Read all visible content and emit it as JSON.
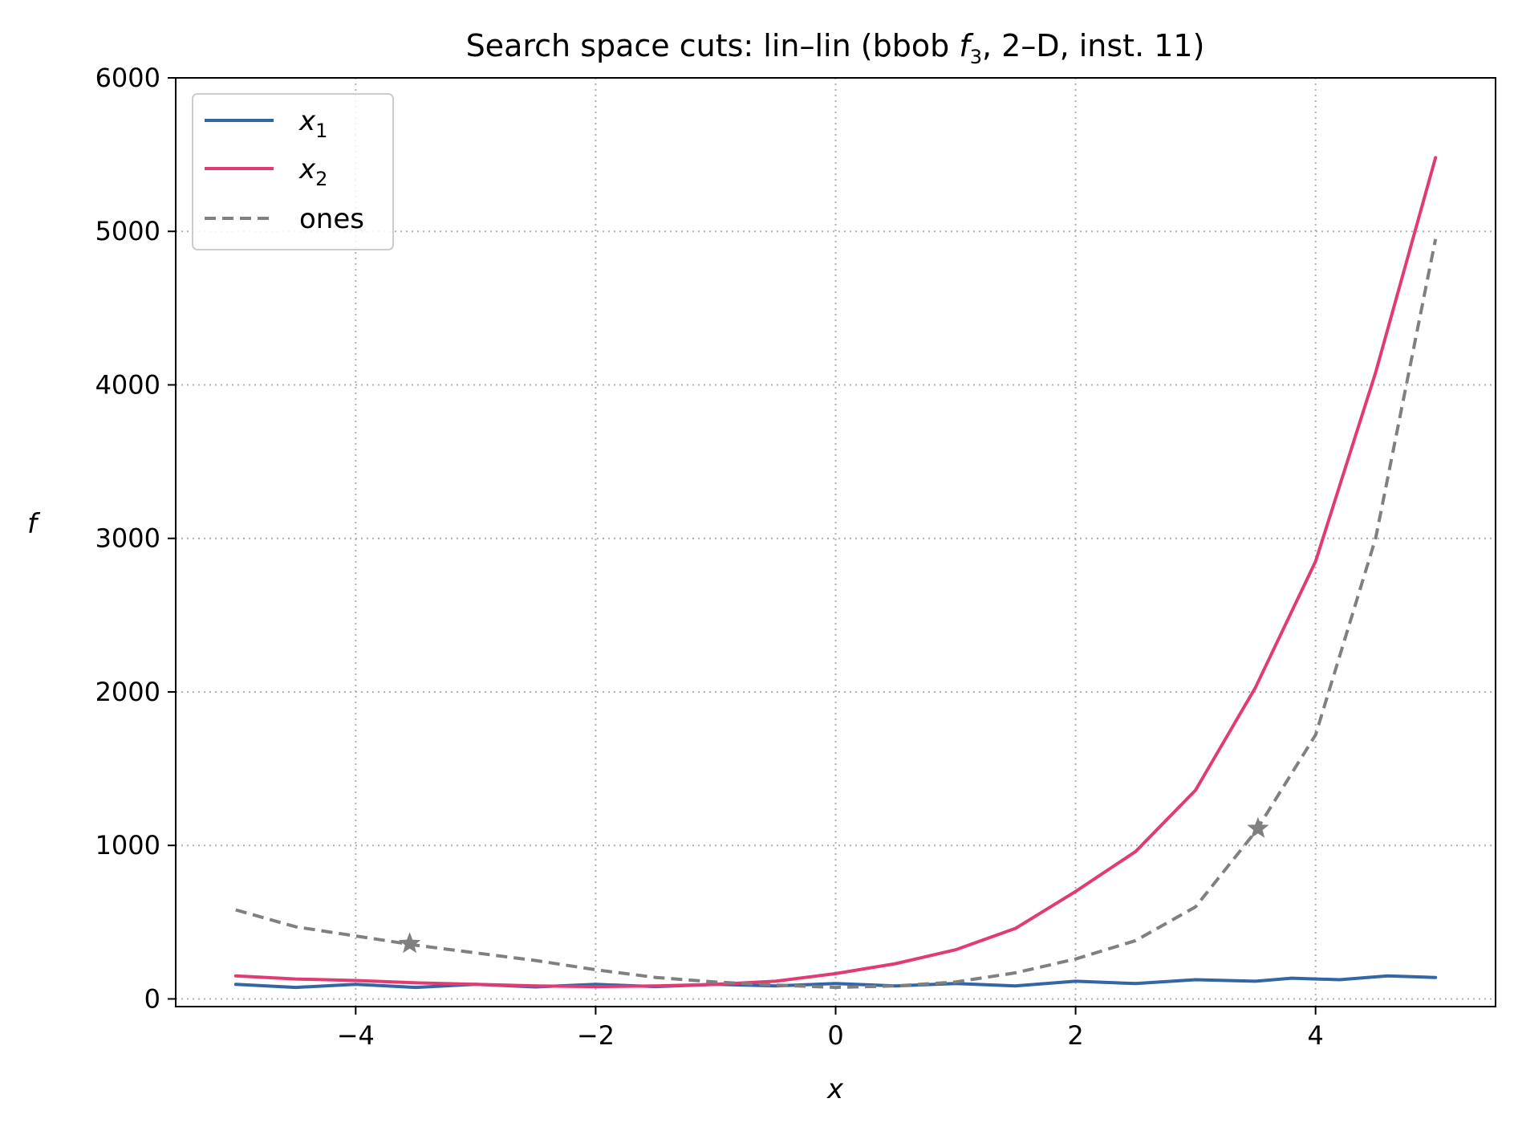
{
  "chart_data": {
    "type": "line",
    "title_main": "Search space cuts: lin–lin (bbob ",
    "title_func": "f",
    "title_func_sub": "3",
    "title_tail": ", 2–D, inst. 11)",
    "xlabel": "x",
    "ylabel": "f",
    "xlim": [
      -5.5,
      5.5
    ],
    "ylim": [
      -50,
      6000
    ],
    "x_ticks": [
      -4,
      -2,
      0,
      2,
      4
    ],
    "x_tick_labels": [
      "−4",
      "−2",
      "0",
      "2",
      "4"
    ],
    "y_ticks": [
      0,
      1000,
      2000,
      3000,
      4000,
      5000,
      6000
    ],
    "y_tick_labels": [
      "0",
      "1000",
      "2000",
      "3000",
      "4000",
      "5000",
      "6000"
    ],
    "grid": true,
    "legend_position": "top-left",
    "series": [
      {
        "name": "x",
        "name_sub": "1",
        "color": "#3465a4",
        "dash": "solid",
        "points": [
          [
            -5,
            95
          ],
          [
            -4.5,
            75
          ],
          [
            -4,
            95
          ],
          [
            -3.5,
            75
          ],
          [
            -3,
            95
          ],
          [
            -2.5,
            78
          ],
          [
            -2,
            95
          ],
          [
            -1.5,
            80
          ],
          [
            -1,
            95
          ],
          [
            -0.5,
            85
          ],
          [
            0,
            100
          ],
          [
            0.5,
            85
          ],
          [
            1,
            100
          ],
          [
            1.5,
            85
          ],
          [
            2,
            115
          ],
          [
            2.5,
            100
          ],
          [
            3,
            125
          ],
          [
            3.5,
            115
          ],
          [
            3.8,
            135
          ],
          [
            4.2,
            125
          ],
          [
            4.6,
            150
          ],
          [
            5,
            140
          ]
        ]
      },
      {
        "name": "x",
        "name_sub": "2",
        "color": "#e23b73",
        "dash": "solid",
        "points": [
          [
            -5,
            150
          ],
          [
            -4.5,
            130
          ],
          [
            -4,
            120
          ],
          [
            -3.5,
            105
          ],
          [
            -3,
            95
          ],
          [
            -2.5,
            85
          ],
          [
            -2,
            80
          ],
          [
            -1.5,
            85
          ],
          [
            -1,
            95
          ],
          [
            -0.5,
            115
          ],
          [
            0,
            165
          ],
          [
            0.5,
            230
          ],
          [
            1,
            320
          ],
          [
            1.5,
            460
          ],
          [
            2,
            700
          ],
          [
            2.5,
            960
          ],
          [
            3,
            1360
          ],
          [
            3.5,
            2030
          ],
          [
            4,
            2850
          ],
          [
            4.5,
            4080
          ],
          [
            5,
            5480
          ]
        ]
      },
      {
        "name": "ones",
        "color": "#808080",
        "dash": "dashed",
        "points": [
          [
            -5,
            580
          ],
          [
            -4.5,
            470
          ],
          [
            -4,
            410
          ],
          [
            -3.5,
            350
          ],
          [
            -3,
            300
          ],
          [
            -2.5,
            250
          ],
          [
            -2,
            190
          ],
          [
            -1.5,
            140
          ],
          [
            -1,
            110
          ],
          [
            -0.5,
            90
          ],
          [
            0,
            75
          ],
          [
            0.5,
            85
          ],
          [
            1,
            110
          ],
          [
            1.5,
            170
          ],
          [
            2,
            260
          ],
          [
            2.5,
            380
          ],
          [
            3,
            600
          ],
          [
            3.5,
            1090
          ],
          [
            4,
            1720
          ],
          [
            4.5,
            3000
          ],
          [
            5,
            4950
          ]
        ]
      }
    ],
    "markers": [
      {
        "x": -3.55,
        "y": 360,
        "symbol": "star",
        "color": "#808080"
      },
      {
        "x": 3.52,
        "y": 1110,
        "symbol": "star",
        "color": "#808080"
      }
    ]
  }
}
